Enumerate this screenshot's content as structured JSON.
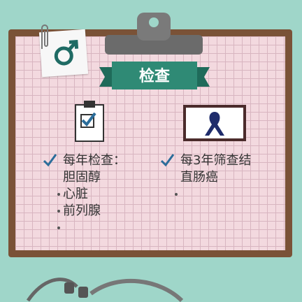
{
  "banner": {
    "label": "检查"
  },
  "icons": {
    "male_symbol": "male-symbol-icon",
    "checklist": "checklist-icon",
    "ribbon": "cancer-ribbon-icon"
  },
  "left_list": {
    "items": [
      {
        "text": "每年检查："
      },
      {
        "text": "胆固醇"
      },
      {
        "text": "心脏"
      },
      {
        "text": "前列腺"
      }
    ]
  },
  "right_list": {
    "items": [
      {
        "text": "每3年筛查结"
      },
      {
        "text": "直肠癌"
      }
    ]
  },
  "colors": {
    "background": "#9fd6c9",
    "board": "#7a5237",
    "paper": "#f3d9df",
    "banner": "#2f8a75",
    "check": "#2b6d9a",
    "ribbon": "#1f2c6b"
  }
}
